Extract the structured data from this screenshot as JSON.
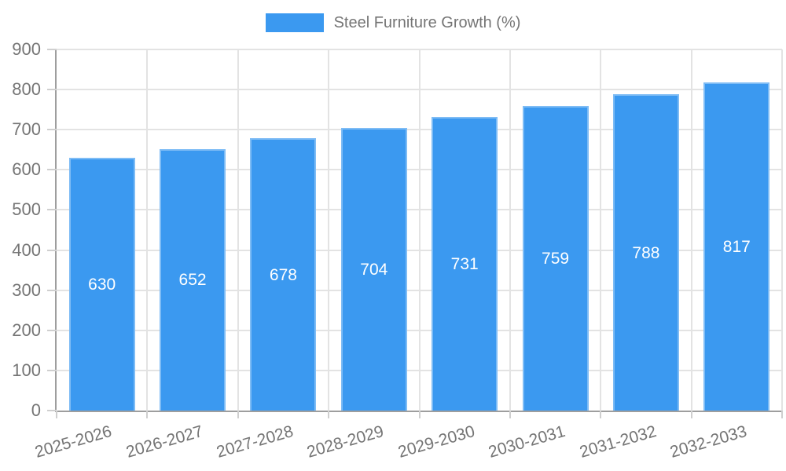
{
  "legend": {
    "label": "Steel Furniture Growth (%)"
  },
  "chart_data": {
    "type": "bar",
    "title": "Steel Furniture Growth (%)",
    "categories": [
      "2025-2026",
      "2026-2027",
      "2027-2028",
      "2028-2029",
      "2029-2030",
      "2030-2031",
      "2031-2032",
      "2032-2033"
    ],
    "values": [
      630,
      652,
      678,
      704,
      731,
      759,
      788,
      817
    ],
    "xlabel": "",
    "ylabel": "",
    "ylim": [
      0,
      900
    ],
    "yticks": [
      0,
      100,
      200,
      300,
      400,
      500,
      600,
      700,
      800,
      900
    ],
    "grid": true,
    "legend_position": "top-center",
    "value_label_position": "inside-center",
    "bar_width_pct": 9.1,
    "colors": {
      "bar": "#3b99f0",
      "bar_border": "#7ebcf5",
      "axis_text": "#757575",
      "grid_line": "#e3e3e3",
      "axis_line": "#9e9e9e",
      "tick": "#cfcfcf",
      "value_label": "#ffffff",
      "background": "#ffffff"
    }
  }
}
